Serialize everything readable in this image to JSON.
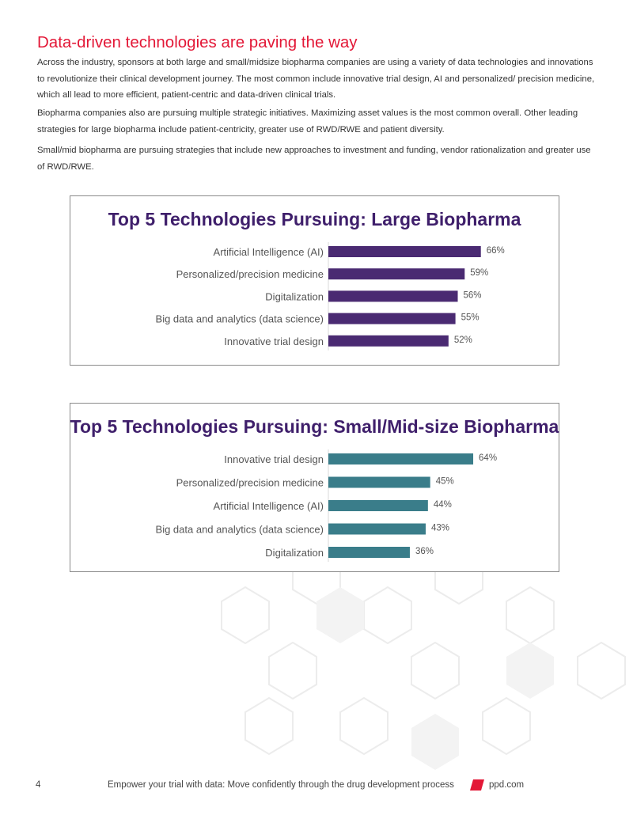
{
  "page": {
    "heading": "Data-driven technologies are paving the way",
    "paragraphs": [
      "Across the industry, sponsors at both large and small/midsize biopharma companies are using a variety of data technologies and innovations to revolutionize their clinical development journey. The most common include innovative trial design, AI and personalized/ precision medicine, which all lead to more efficient, patient-centric and data-driven clinical trials.",
      "Biopharma companies also are pursuing multiple strategic initiatives. Maximizing asset values is the most common overall. Other leading strategies for large biopharma include patient-centricity, greater use of RWD/RWE and patient diversity.",
      "Small/mid biopharma are pursuing strategies that include new approaches to investment and funding, vendor rationalization and greater use of RWD/RWE."
    ],
    "footer": {
      "page_number": "4",
      "text": "Empower your trial with data: Move confidently through the drug development process",
      "url": "ppd.com",
      "logo_color": "#e31837"
    }
  },
  "chart_data": [
    {
      "type": "bar",
      "orientation": "horizontal",
      "title": "Top 5 Technologies Pursuing: Large Biopharma",
      "categories": [
        "Artificial Intelligence (AI)",
        "Personalized/precision medicine",
        "Digitalization",
        "Big data and analytics (data science)",
        "Innovative trial design"
      ],
      "values": [
        66,
        59,
        56,
        55,
        52
      ],
      "value_labels": [
        "66%",
        "59%",
        "56%",
        "55%",
        "52%"
      ],
      "unit": "%",
      "xlim": [
        0,
        100
      ],
      "color": "#4a2a72",
      "grid": false,
      "legend": false
    },
    {
      "type": "bar",
      "orientation": "horizontal",
      "title": "Top 5 Technologies Pursuing: Small/Mid-size Biopharma",
      "categories": [
        "Innovative trial design",
        "Personalized/precision medicine",
        "Artificial Intelligence (AI)",
        "Big data and analytics (data science)",
        "Digitalization"
      ],
      "values": [
        64,
        45,
        44,
        43,
        36
      ],
      "value_labels": [
        "64%",
        "45%",
        "44%",
        "43%",
        "36%"
      ],
      "unit": "%",
      "xlim": [
        0,
        100
      ],
      "color": "#3a7d8a",
      "grid": false,
      "legend": false
    }
  ]
}
